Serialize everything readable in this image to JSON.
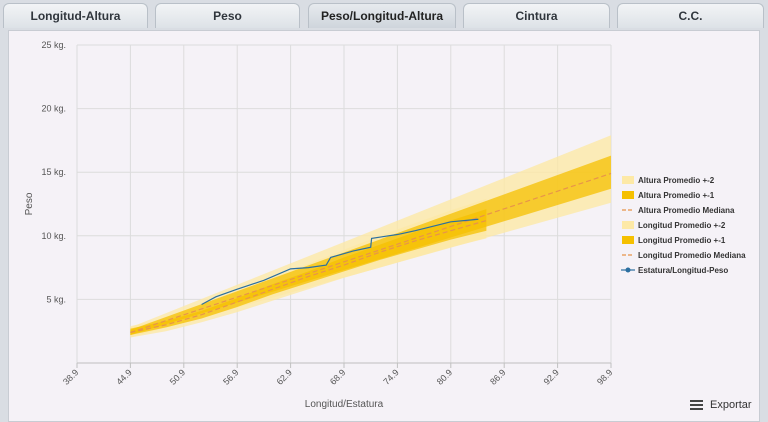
{
  "tabs": [
    {
      "label": "Longitud-Altura",
      "active": false
    },
    {
      "label": "Peso",
      "active": false
    },
    {
      "label": "Peso/Longitud-Altura",
      "active": true
    },
    {
      "label": "Cintura",
      "active": false
    },
    {
      "label": "C.C.",
      "active": false
    }
  ],
  "export_label": "Exportar",
  "chart_data": {
    "type": "area",
    "xlabel": "Longitud/Estatura",
    "ylabel": "Peso",
    "xlim": [
      38.9,
      98.9
    ],
    "ylim": [
      0,
      25
    ],
    "x_ticks": [
      "38.9",
      "44.9",
      "50.9",
      "56.9",
      "62.9",
      "68.9",
      "74.9",
      "80.9",
      "86.9",
      "92.9",
      "98.9"
    ],
    "y_ticks": [
      "5 kg.",
      "10 kg.",
      "15 kg.",
      "20 kg.",
      "25 kg."
    ],
    "grid": true,
    "legend_position": "right",
    "colors": {
      "band2": "#fde9a6",
      "band1": "#f5c000",
      "median": "#e8944a",
      "patient": "#2b6fa0"
    },
    "series": [
      {
        "name": "Altura Promedio +-2",
        "kind": "band2",
        "x": [
          44.9,
          98.9
        ],
        "lower": [
          2.0,
          12.6
        ],
        "upper": [
          2.8,
          17.9
        ]
      },
      {
        "name": "Altura Promedio +-1",
        "kind": "band1",
        "x": [
          44.9,
          98.9
        ],
        "lower": [
          2.2,
          13.7
        ],
        "upper": [
          2.6,
          16.3
        ]
      },
      {
        "name": "Altura Promedio Mediana",
        "kind": "median",
        "x": [
          44.9,
          98.9
        ],
        "values": [
          2.4,
          14.9
        ]
      },
      {
        "name": "Longitud Promedio +-2",
        "kind": "band2",
        "x": [
          44.9,
          48.9,
          52.9,
          56.9,
          60.9,
          64.9,
          68.9,
          72.9,
          76.9,
          80.9,
          84.9
        ],
        "lower": [
          2.0,
          2.5,
          3.2,
          4.0,
          4.9,
          5.8,
          6.7,
          7.5,
          8.3,
          9.1,
          9.8
        ],
        "upper": [
          2.9,
          3.5,
          4.5,
          5.6,
          6.7,
          7.8,
          8.9,
          10.0,
          11.0,
          12.0,
          12.9
        ]
      },
      {
        "name": "Longitud Promedio +-1",
        "kind": "band1",
        "x": [
          44.9,
          48.9,
          52.9,
          56.9,
          60.9,
          64.9,
          68.9,
          72.9,
          76.9,
          80.9,
          84.9
        ],
        "lower": [
          2.2,
          2.8,
          3.5,
          4.4,
          5.4,
          6.3,
          7.2,
          8.1,
          8.9,
          9.7,
          10.4
        ],
        "upper": [
          2.7,
          3.3,
          4.1,
          5.1,
          6.2,
          7.2,
          8.3,
          9.3,
          10.3,
          11.2,
          12.1
        ]
      },
      {
        "name": "Longitud Promedio Mediana",
        "kind": "median",
        "x": [
          44.9,
          48.9,
          52.9,
          56.9,
          60.9,
          64.9,
          68.9,
          72.9,
          76.9,
          80.9,
          84.9
        ],
        "values": [
          2.4,
          3.0,
          3.8,
          4.8,
          5.8,
          6.8,
          7.7,
          8.7,
          9.6,
          10.4,
          11.2
        ]
      },
      {
        "name": "Estatura/Longitud-Peso",
        "kind": "patient",
        "x": [
          52.9,
          54.5,
          56.9,
          59.9,
          62.9,
          64.9,
          66.9,
          67.4,
          69.9,
          71.9,
          72.0,
          74.9,
          76.9,
          80.9,
          84.0
        ],
        "values": [
          4.6,
          5.2,
          5.8,
          6.5,
          7.4,
          7.5,
          7.7,
          8.3,
          8.8,
          9.1,
          9.8,
          10.1,
          10.4,
          11.1,
          11.3
        ]
      }
    ]
  }
}
